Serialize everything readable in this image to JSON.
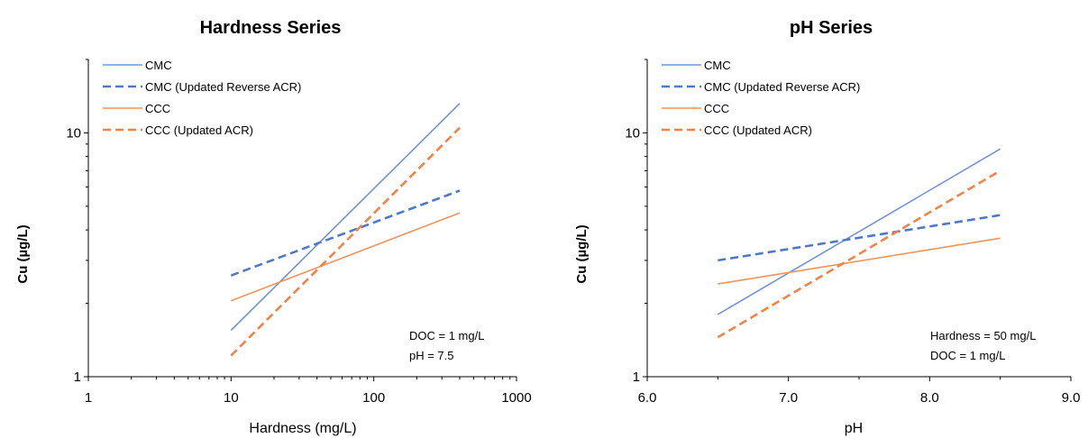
{
  "colors": {
    "cmc": "#7393d6",
    "cmc_updated": "#4f79c8",
    "ccc": "#f0945a",
    "ccc_updated": "#f08448",
    "axis": "#000000"
  },
  "chart_data": [
    {
      "type": "line",
      "title": "Hardness Series",
      "xlabel": "Hardness (mg/L)",
      "ylabel": "Cu (µg/L)",
      "xscale": "log",
      "yscale": "log",
      "xlim": [
        1,
        1000
      ],
      "ylim": [
        1,
        20
      ],
      "xticks": [
        1,
        10,
        100,
        1000
      ],
      "xtick_labels": [
        "1",
        "10",
        "100",
        "1000"
      ],
      "yticks": [
        1,
        10
      ],
      "ytick_labels": [
        "1",
        "10"
      ],
      "grid": false,
      "legend_position": "top-left",
      "annotations": [
        "DOC = 1 mg/L",
        "pH = 7.5"
      ],
      "series": [
        {
          "name": "CMC",
          "style": "solid",
          "color_key": "cmc",
          "x": [
            10,
            400
          ],
          "y": [
            1.55,
            13.2
          ]
        },
        {
          "name": "CMC (Updated Reverse ACR)",
          "style": "dashed",
          "color_key": "cmc_updated",
          "x": [
            10,
            400
          ],
          "y": [
            2.6,
            5.8
          ]
        },
        {
          "name": "CCC",
          "style": "solid",
          "color_key": "ccc",
          "x": [
            10,
            400
          ],
          "y": [
            2.05,
            4.7
          ]
        },
        {
          "name": "CCC (Updated ACR)",
          "style": "dashed",
          "color_key": "ccc_updated",
          "x": [
            10,
            400
          ],
          "y": [
            1.22,
            10.5
          ]
        }
      ]
    },
    {
      "type": "line",
      "title": "pH Series",
      "xlabel": "pH",
      "ylabel": "Cu (µg/L)",
      "xscale": "linear",
      "yscale": "log",
      "xlim": [
        6.0,
        9.0
      ],
      "ylim": [
        1,
        20
      ],
      "xticks": [
        6,
        7,
        8,
        9
      ],
      "xtick_labels": [
        "6.0",
        "7.0",
        "8.0",
        "9.0"
      ],
      "yticks": [
        1,
        10
      ],
      "ytick_labels": [
        "1",
        "10"
      ],
      "grid": false,
      "legend_position": "top-left",
      "annotations": [
        "Hardness = 50 mg/L",
        "DOC = 1 mg/L"
      ],
      "series": [
        {
          "name": "CMC",
          "style": "solid",
          "color_key": "cmc",
          "x": [
            6.5,
            8.5
          ],
          "y": [
            1.8,
            8.6
          ]
        },
        {
          "name": "CMC (Updated Reverse ACR)",
          "style": "dashed",
          "color_key": "cmc_updated",
          "x": [
            6.5,
            8.5
          ],
          "y": [
            3.0,
            4.6
          ]
        },
        {
          "name": "CCC",
          "style": "solid",
          "color_key": "ccc",
          "x": [
            6.5,
            8.5
          ],
          "y": [
            2.4,
            3.7
          ]
        },
        {
          "name": "CCC (Updated ACR)",
          "style": "dashed",
          "color_key": "ccc_updated",
          "x": [
            6.5,
            8.5
          ],
          "y": [
            1.45,
            7.0
          ]
        }
      ]
    }
  ]
}
